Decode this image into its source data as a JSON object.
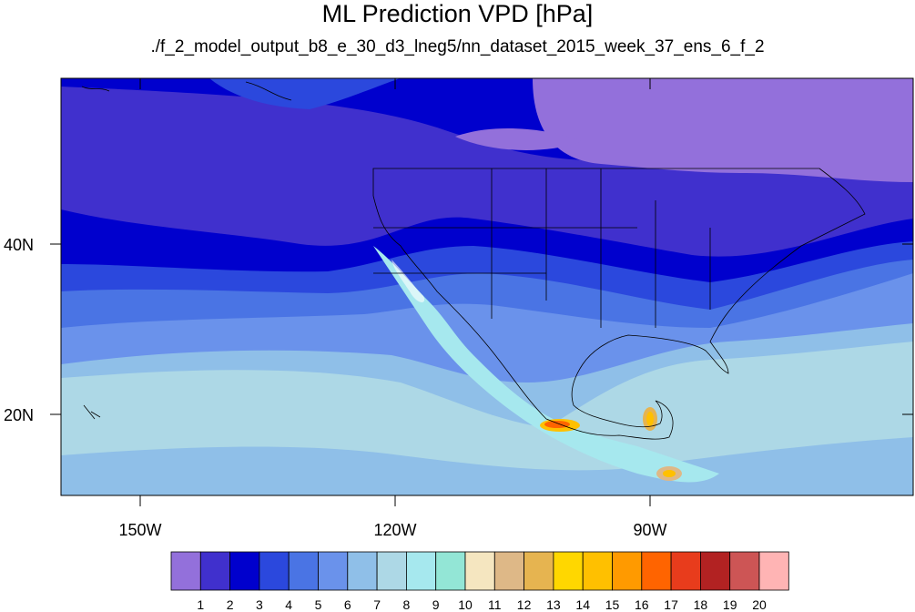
{
  "title": "ML Prediction VPD [hPa]",
  "subtitle": "./f_2_model_output_b8_e_30_d3_lneg5/nn_dataset_2015_week_37_ens_6_f_2",
  "map": {
    "lon_range": [
      -160,
      -62
    ],
    "lat_range": [
      11,
      60
    ],
    "lon_ticks": [
      "150W",
      "120W",
      "90W"
    ],
    "lat_ticks": [
      "40N",
      "20N"
    ]
  },
  "colorbar": {
    "colors": [
      "#9370db",
      "#4030cd",
      "#0000cd",
      "#2b48dd",
      "#4a74e4",
      "#6a92eb",
      "#8fbfe8",
      "#add8e6",
      "#a6e8ee",
      "#93e6d6",
      "#f5e6c0",
      "#deb887",
      "#e6b450",
      "#ffd700",
      "#ffc000",
      "#ff9a00",
      "#ff6400",
      "#e83c1c",
      "#b22222",
      "#cd5555",
      "#ffb4b4"
    ],
    "labels": [
      "1",
      "2",
      "3",
      "4",
      "5",
      "6",
      "7",
      "8",
      "9",
      "10",
      "11",
      "12",
      "13",
      "14",
      "15",
      "16",
      "17",
      "18",
      "19",
      "20"
    ]
  }
}
